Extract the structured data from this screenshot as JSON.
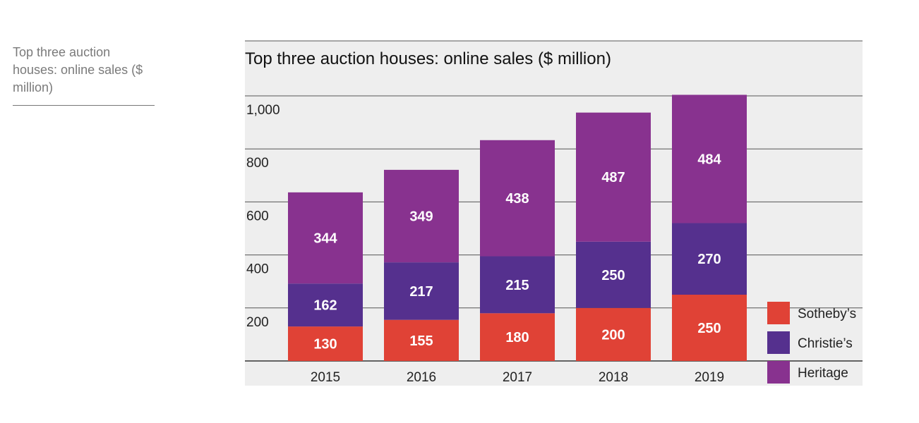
{
  "sidebar": {
    "caption": "Top three auction houses: online sales ($ million)"
  },
  "chart_data": {
    "type": "bar",
    "stacked": true,
    "title": "Top three auction houses: online sales ($ million)",
    "xlabel": "",
    "ylabel": "",
    "categories": [
      "2015",
      "2016",
      "2017",
      "2018",
      "2019"
    ],
    "series": [
      {
        "name": "Sotheby’s",
        "values": [
          130,
          155,
          180,
          200,
          250
        ],
        "color": "#e04236"
      },
      {
        "name": "Christie’s",
        "values": [
          162,
          217,
          215,
          250,
          270
        ],
        "color": "#55308e"
      },
      {
        "name": "Heritage",
        "values": [
          344,
          349,
          438,
          487,
          484
        ],
        "color": "#88328f"
      }
    ],
    "yticks": [
      200,
      400,
      600,
      800,
      1000
    ],
    "ytick_labels": [
      "200",
      "400",
      "600",
      "800",
      "1,000"
    ],
    "ylim": [
      0,
      1000
    ],
    "grid": true,
    "legend_position": "bottom-right",
    "background_color": "#eeeeee"
  }
}
